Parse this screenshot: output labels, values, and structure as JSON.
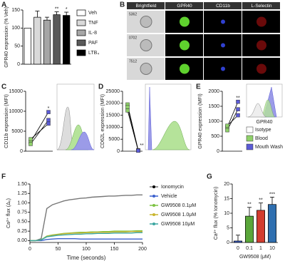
{
  "chart_data": [
    {
      "type": "bar",
      "panel": "A",
      "ylabel": "GPR40 expression (% Veh)",
      "categories": [
        "Veh",
        "TNF",
        "IL-8",
        "PAF",
        "LTB₄"
      ],
      "values": [
        100,
        130,
        122,
        137,
        135
      ],
      "errors": [
        null,
        17,
        8,
        8,
        9
      ],
      "colors": [
        "#ffffff",
        "#d9d9d9",
        "#a6a6a6",
        "#595959",
        "#000000"
      ],
      "significance": [
        null,
        null,
        null,
        "**",
        "*"
      ],
      "ylim": [
        0,
        150
      ],
      "yticks": [
        0,
        50,
        100,
        150
      ],
      "legend": "right"
    },
    {
      "type": "paired",
      "panel": "C",
      "ylabel": "CD11b expression (MFI)",
      "series": [
        {
          "color": "#8fd16a",
          "values": [
            2300,
            1800,
            3000
          ]
        },
        {
          "color": "#5b5bd6",
          "values": [
            9800,
            7800,
            6900
          ]
        }
      ],
      "significance": "*",
      "ylim": [
        0,
        15000
      ],
      "yticks": [
        0,
        5000,
        10000,
        15000
      ]
    },
    {
      "type": "paired",
      "panel": "D",
      "ylabel": "CD62L expression (MFI)",
      "series": [
        {
          "color": "#8fd16a",
          "values": [
            19500,
            18500,
            17000
          ]
        },
        {
          "color": "#5b5bd6",
          "values": [
            400,
            300,
            200
          ]
        }
      ],
      "significance": "**",
      "ylim": [
        0,
        25000
      ],
      "yticks": [
        0,
        5000,
        10000,
        15000,
        20000,
        25000
      ]
    },
    {
      "type": "paired",
      "panel": "E",
      "ylabel": "GPR40 expression (MFI)",
      "inset_xlabel": "GPR40",
      "series": [
        {
          "color": "#8fd16a",
          "values": [
            800,
            700,
            850
          ]
        },
        {
          "color": "#5b5bd6",
          "values": [
            1650,
            1400,
            1200
          ]
        }
      ],
      "legend_items": [
        {
          "name": "Isotype",
          "color": "#ffffff"
        },
        {
          "name": "Blood",
          "color": "#8fd16a"
        },
        {
          "name": "Mouth Wash",
          "color": "#5b5bd6"
        }
      ],
      "significance": "**",
      "ylim": [
        0,
        2000
      ],
      "yticks": [
        0,
        500,
        1000,
        1500,
        2000
      ]
    },
    {
      "type": "line",
      "panel": "F",
      "ylabel": "Ca²⁺ flux (Δ₀)",
      "xlabel": "Time (seconds)",
      "x": [
        0,
        10,
        20,
        30,
        40,
        50,
        60,
        70,
        80,
        90,
        100,
        110,
        120,
        130,
        140,
        150,
        160,
        170,
        180,
        190,
        200
      ],
      "series": [
        {
          "name": "Ionomycin",
          "color": "#777777",
          "values": [
            0,
            0,
            0.05,
            0.85,
            0.95,
            1.0,
            1.05,
            1.08,
            1.1,
            1.12,
            1.13,
            1.15,
            1.16,
            1.17,
            1.18,
            1.18,
            1.19,
            1.2,
            1.2,
            1.21,
            1.21
          ]
        },
        {
          "name": "Vehicle",
          "color": "#3a5fcd",
          "values": [
            0,
            0,
            0,
            0.03,
            0.04,
            0.05,
            0.05,
            0.05,
            0.05,
            0.04,
            0.04,
            0.04,
            0.04,
            0.04,
            0.04,
            0.04,
            0.04,
            0.04,
            0.04,
            0.04,
            0.04
          ]
        },
        {
          "name": "GW9508 0.1μM",
          "color": "#7cc242",
          "values": [
            0,
            0,
            0.02,
            0.12,
            0.15,
            0.17,
            0.19,
            0.2,
            0.21,
            0.22,
            0.22,
            0.23,
            0.23,
            0.24,
            0.24,
            0.25,
            0.25,
            0.25,
            0.25,
            0.26,
            0.26
          ]
        },
        {
          "name": "GW9508 1.0μM",
          "color": "#c9b52e",
          "values": [
            0,
            0,
            0.02,
            0.11,
            0.14,
            0.16,
            0.18,
            0.19,
            0.2,
            0.2,
            0.21,
            0.21,
            0.22,
            0.22,
            0.22,
            0.23,
            0.23,
            0.23,
            0.24,
            0.24,
            0.24
          ]
        },
        {
          "name": "GW9508 10μM",
          "color": "#3aa6a0",
          "values": [
            0,
            0,
            0.02,
            0.1,
            0.12,
            0.14,
            0.15,
            0.16,
            0.17,
            0.17,
            0.18,
            0.18,
            0.19,
            0.19,
            0.19,
            0.2,
            0.2,
            0.2,
            0.2,
            0.21,
            0.21
          ]
        }
      ],
      "xlim": [
        0,
        200
      ],
      "xticks": [
        0,
        50,
        100,
        150,
        200
      ],
      "ylim": [
        -0.05,
        1.5
      ],
      "yticks": [
        {
          "value": 0,
          "label": "0.00"
        },
        {
          "value": 0.25,
          "label": "0.25"
        },
        {
          "value": 0.5,
          "label": "0.50"
        },
        {
          "value": 0.75,
          "label": "0.75"
        },
        {
          "value": 1,
          "label": "1.00"
        },
        {
          "value": 1.25,
          "label": "1.25"
        },
        {
          "value": 1.5,
          "label": "1.50"
        }
      ]
    },
    {
      "type": "bar",
      "panel": "G",
      "ylabel": "Ca²⁺ flux (% Ionomycin)",
      "xlabel": "GW9508 (μM)",
      "categories": [
        "0",
        "0.1",
        "1",
        "10"
      ],
      "values": [
        0.5,
        9,
        11,
        13
      ],
      "errors": [
        2,
        3,
        2.5,
        2.5
      ],
      "colors": [
        "#3a5fcd",
        "#5aa63a",
        "#d23c2f",
        "#2f6fb0"
      ],
      "significance": [
        null,
        "**",
        "**",
        "***"
      ],
      "ylim": [
        0,
        20
      ],
      "yticks": [
        0,
        5,
        10,
        15,
        20
      ]
    }
  ],
  "panel_b": {
    "panel": "B",
    "columns": [
      "Brightfield",
      "GPR40",
      "CD11b",
      "L-Selectin"
    ],
    "rows": [
      "5362",
      "0702",
      "7512"
    ]
  }
}
